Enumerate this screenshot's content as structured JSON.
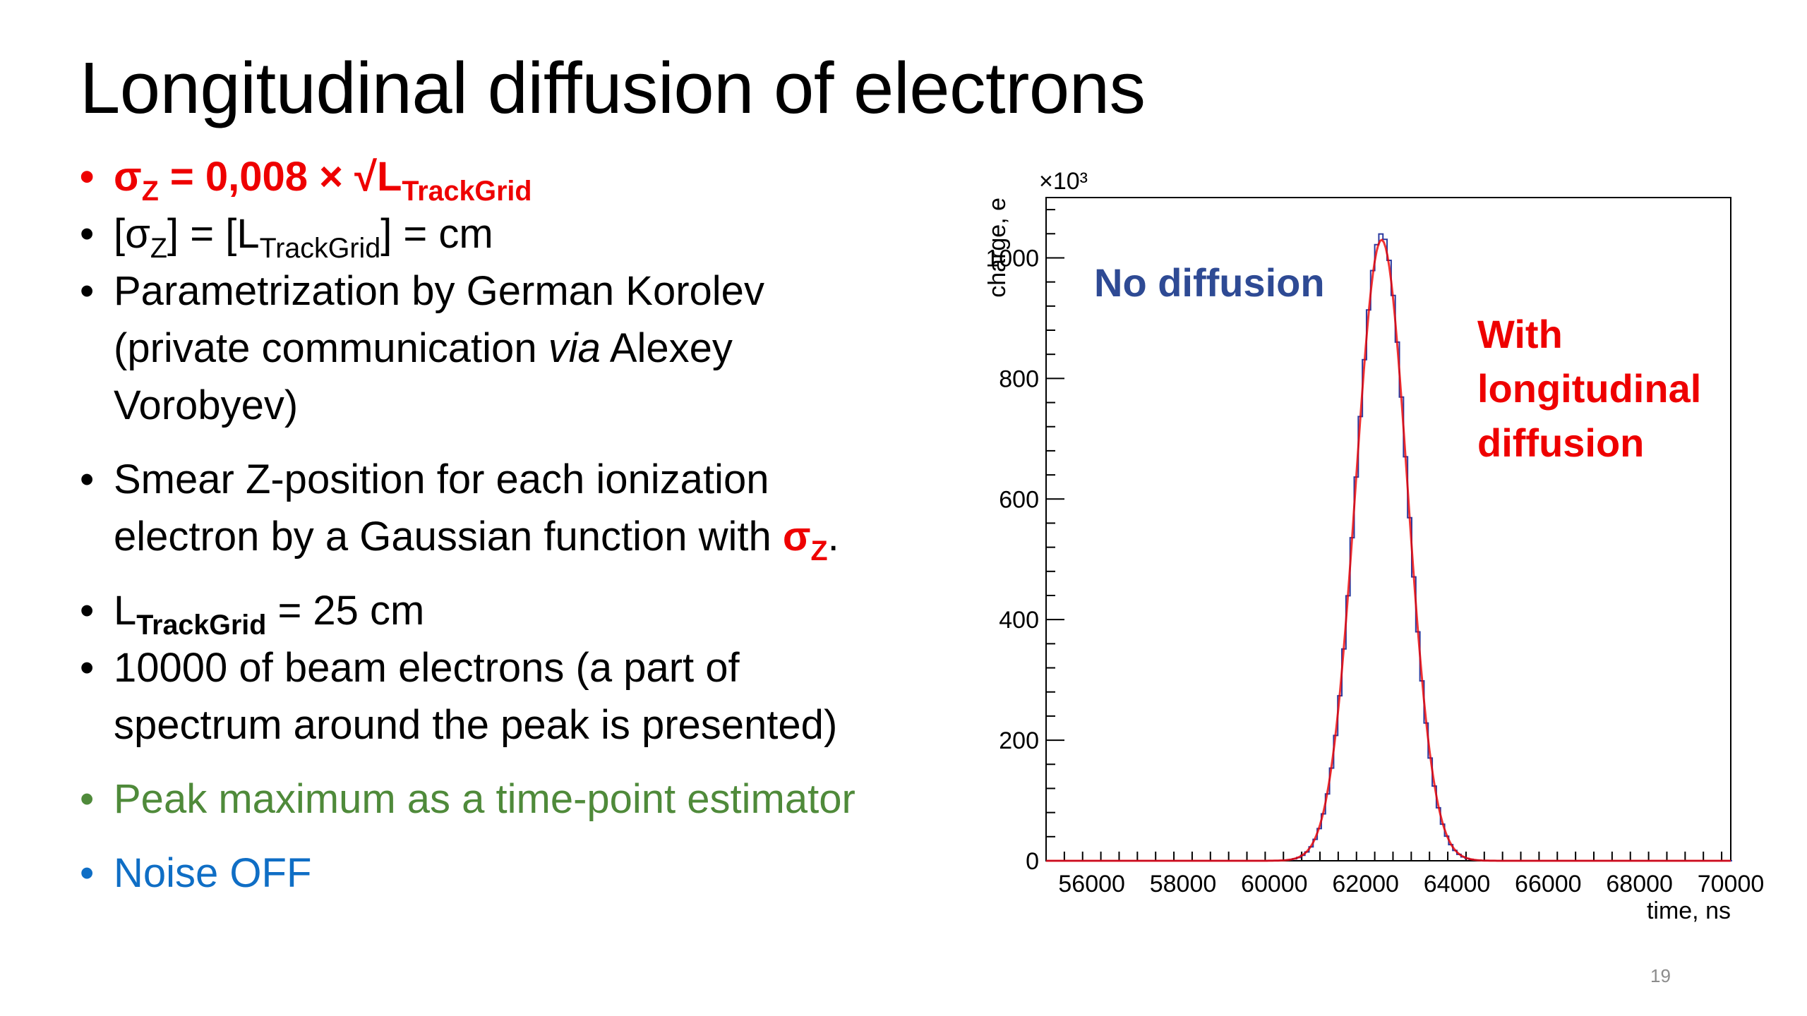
{
  "slide": {
    "title": "Longitudinal diffusion of electrons",
    "page_number": "19",
    "bullet_marker": "•",
    "bullets": [
      {
        "prefix": "σ",
        "sub1": "Z",
        "mid": " = 0,008 × √L",
        "sub2": "TrackGrid",
        "suffix": ""
      },
      {
        "prefix": "[σ",
        "sub1": "Z",
        "mid": "] = [L",
        "sub2": "TrackGrid",
        "suffix": "] = cm"
      },
      {
        "line1": "Parametrization by German Korolev",
        "line2a": "(private communication ",
        "line2b": "via",
        "line2c": " Alexey",
        "line3": "Vorobyev)"
      },
      {
        "line1": "Smear Z-position for each ionization",
        "line2a": "electron by a Gaussian function with ",
        "sigma": "σ",
        "sub": "Z",
        "end": "."
      },
      {
        "pre": "L",
        "sub": "TrackGrid",
        "post": " = 25 cm"
      },
      {
        "line1": "10000 of beam electrons (a part of",
        "line2": "spectrum around the peak is presented)"
      },
      {
        "text": "Peak maximum as a time-point estimator"
      },
      {
        "text": "Noise OFF"
      }
    ]
  },
  "chart_data": {
    "type": "line",
    "xlabel": "time, ns",
    "ylabel": "charge, e",
    "y_multiplier": "×10³",
    "xlim": [
      55000,
      70000
    ],
    "ylim": [
      0,
      1100
    ],
    "x_ticks": [
      56000,
      58000,
      60000,
      62000,
      64000,
      66000,
      68000,
      70000
    ],
    "y_ticks": [
      0,
      200,
      400,
      600,
      800,
      1000
    ],
    "grid": false,
    "annotations": [
      "No diffusion",
      "With",
      "longitudinal",
      "diffusion"
    ],
    "series": [
      {
        "name": "No diffusion",
        "color": "#2b3aa0",
        "peak_x": 62350,
        "peak_y": 1040,
        "sigma": 560,
        "style": "step"
      },
      {
        "name": "With longitudinal diffusion",
        "color": "#ee0000",
        "peak_x": 62350,
        "peak_y": 1030,
        "sigma": 565,
        "style": "smooth"
      }
    ]
  }
}
